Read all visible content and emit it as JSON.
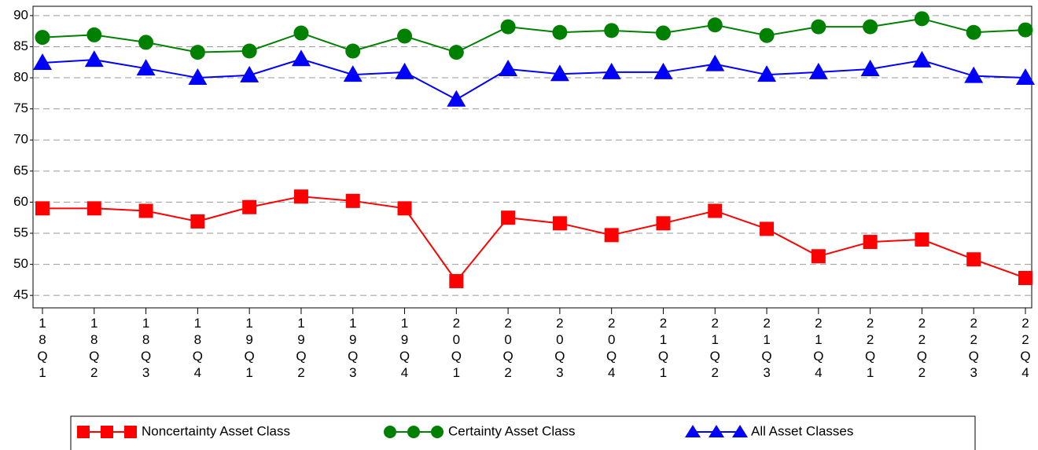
{
  "chart_data": {
    "type": "line",
    "categories": [
      "18Q1",
      "18Q2",
      "18Q3",
      "18Q4",
      "19Q1",
      "19Q2",
      "19Q3",
      "19Q4",
      "20Q1",
      "20Q2",
      "20Q3",
      "20Q4",
      "21Q1",
      "21Q2",
      "21Q3",
      "21Q4",
      "22Q1",
      "22Q2",
      "22Q3",
      "22Q4"
    ],
    "series": [
      {
        "name": "Noncertainty Asset Class",
        "color": "#ff0000",
        "marker": "square",
        "values": [
          59.0,
          59.0,
          58.6,
          56.9,
          59.2,
          60.9,
          60.2,
          59.0,
          47.3,
          57.5,
          56.6,
          54.7,
          56.6,
          58.6,
          55.7,
          51.3,
          53.6,
          54.0,
          50.8,
          47.8
        ]
      },
      {
        "name": "Certainty Asset Class",
        "color": "#008000",
        "marker": "circle",
        "values": [
          86.5,
          86.9,
          85.7,
          84.1,
          84.3,
          87.2,
          84.3,
          86.7,
          84.1,
          88.2,
          87.3,
          87.6,
          87.2,
          88.5,
          86.8,
          88.2,
          88.2,
          89.5,
          87.3,
          87.7
        ]
      },
      {
        "name": "All Asset Classes",
        "color": "#0000ff",
        "marker": "triangle",
        "values": [
          82.4,
          82.9,
          81.5,
          80.0,
          80.4,
          83.0,
          80.5,
          80.9,
          76.5,
          81.4,
          80.6,
          80.9,
          80.9,
          82.2,
          80.5,
          80.9,
          81.4,
          82.8,
          80.3,
          80.0
        ]
      }
    ],
    "ylim": [
      43,
      91.5
    ],
    "yticks": [
      45,
      50,
      55,
      60,
      65,
      70,
      75,
      80,
      85,
      90
    ],
    "grid": true,
    "legend": "bottom"
  }
}
